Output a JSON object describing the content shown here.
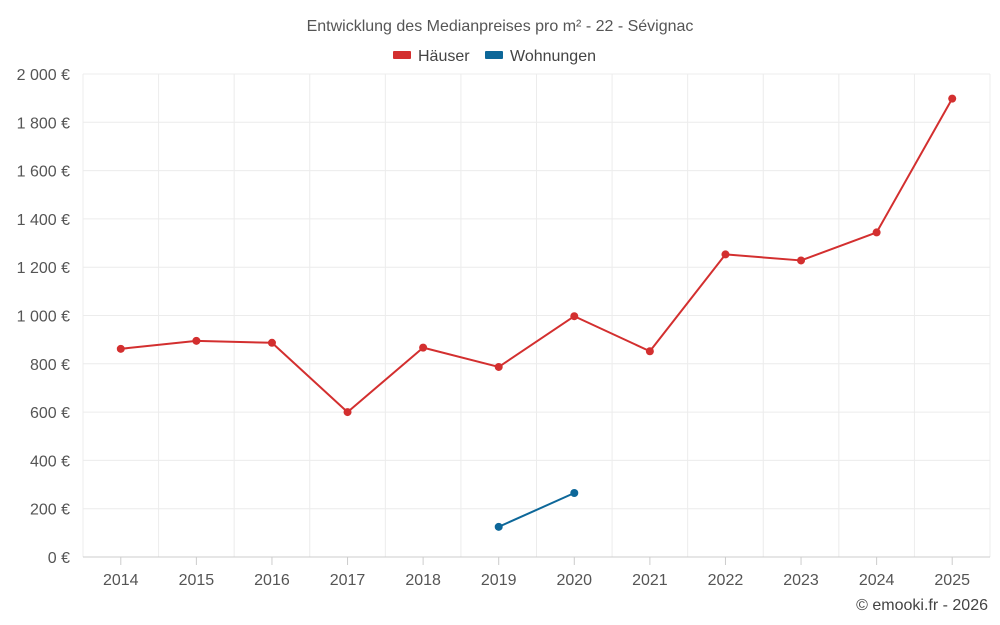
{
  "chart_data": {
    "type": "line",
    "title": "Entwicklung des Medianpreises pro m² - 22 - Sévignac",
    "x": [
      "2014",
      "2015",
      "2016",
      "2017",
      "2018",
      "2019",
      "2020",
      "2021",
      "2022",
      "2023",
      "2024",
      "2025"
    ],
    "y_ticks": [
      "0 €",
      "200 €",
      "400 €",
      "600 €",
      "800 €",
      "1 000 €",
      "1 200 €",
      "1 400 €",
      "1 600 €",
      "1 800 €",
      "2 000 €"
    ],
    "ylim": [
      0,
      2000
    ],
    "grid": true,
    "legend_position": "top-center",
    "series": [
      {
        "name": "Häuser",
        "color": "#d32f2f",
        "values": [
          862,
          895,
          887,
          600,
          867,
          787,
          997,
          852,
          1253,
          1228,
          1344,
          1898
        ]
      },
      {
        "name": "Wohnungen",
        "color": "#0d6799",
        "values": [
          null,
          null,
          null,
          null,
          null,
          125,
          265,
          null,
          null,
          null,
          null,
          null
        ]
      }
    ]
  },
  "credit": "© emooki.fr - 2026"
}
